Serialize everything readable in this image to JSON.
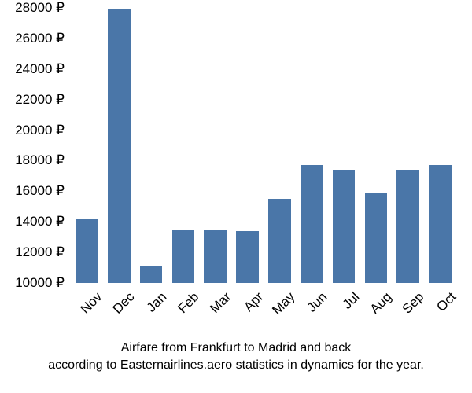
{
  "airfare_chart": {
    "type": "bar",
    "categories": [
      "Nov",
      "Dec",
      "Jan",
      "Feb",
      "Mar",
      "Apr",
      "May",
      "Jun",
      "Jul",
      "Aug",
      "Sep",
      "Oct"
    ],
    "values": [
      14200,
      27900,
      11100,
      13500,
      13500,
      13400,
      15500,
      17700,
      17400,
      15900,
      17400,
      17700
    ],
    "bar_color": "#4a76a8",
    "background_color": "#ffffff",
    "currency_symbol": "₽",
    "ylim": [
      10000,
      28000
    ],
    "ytick_step": 2000,
    "yticks": [
      10000,
      12000,
      14000,
      16000,
      18000,
      20000,
      22000,
      24000,
      26000,
      28000
    ],
    "bar_width": 0.7,
    "axis_fontsize": 17,
    "axis_color": "#000000",
    "caption_fontsize": 16,
    "caption_line1": "Airfare from Frankfurt to Madrid and back",
    "caption_line2": "according to Easternairlines.aero statistics in dynamics for the year.",
    "xlabel_rotation_deg": -45
  }
}
